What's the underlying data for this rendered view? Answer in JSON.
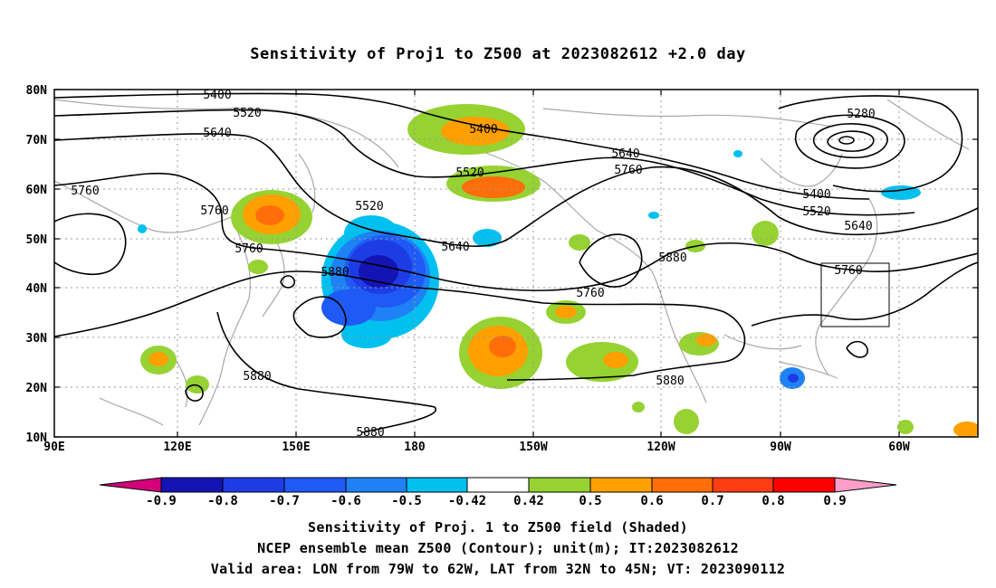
{
  "title": "Sensitivity of Proj1 to Z500 at 2023082612 +2.0 day",
  "lat_labels": [
    "80N",
    "70N",
    "60N",
    "50N",
    "40N",
    "30N",
    "20N",
    "10N"
  ],
  "lon_labels": [
    "90E",
    "120E",
    "150E",
    "180",
    "150W",
    "120W",
    "90W",
    "60W"
  ],
  "contour_labels": [
    "5400",
    "5520",
    "5640",
    "5760",
    "5760",
    "5760",
    "5400",
    "5520",
    "5520",
    "5640",
    "5880",
    "5880",
    "5880",
    "5280",
    "5640",
    "5760",
    "5400",
    "5520",
    "5640",
    "5760",
    "5760",
    "5880",
    "5880"
  ],
  "colorbar": {
    "labels": [
      "-0.9",
      "-0.8",
      "-0.7",
      "-0.6",
      "-0.5",
      "-0.42",
      "0.42",
      "0.5",
      "0.6",
      "0.7",
      "0.8",
      "0.9"
    ],
    "colors": [
      "#d4007a",
      "#1414b4",
      "#1e3ce6",
      "#1e5af5",
      "#1e82f5",
      "#00c0f0",
      "#ffffff",
      "#96d232",
      "#ffa000",
      "#ff6e0a",
      "#ff3c14",
      "#ff0000",
      "#ff9ec8"
    ]
  },
  "captions": [
    "Sensitivity of Proj. 1 to Z500 field (Shaded)",
    "NCEP ensemble mean Z500 (Contour); unit(m); IT:2023082612",
    "Valid area: LON from 79W to 62W, LAT from 32N to 45N; VT: 2023090112"
  ],
  "colors": {
    "land": "#a8a8a8",
    "grid": "#999999",
    "contour": "#000000"
  }
}
